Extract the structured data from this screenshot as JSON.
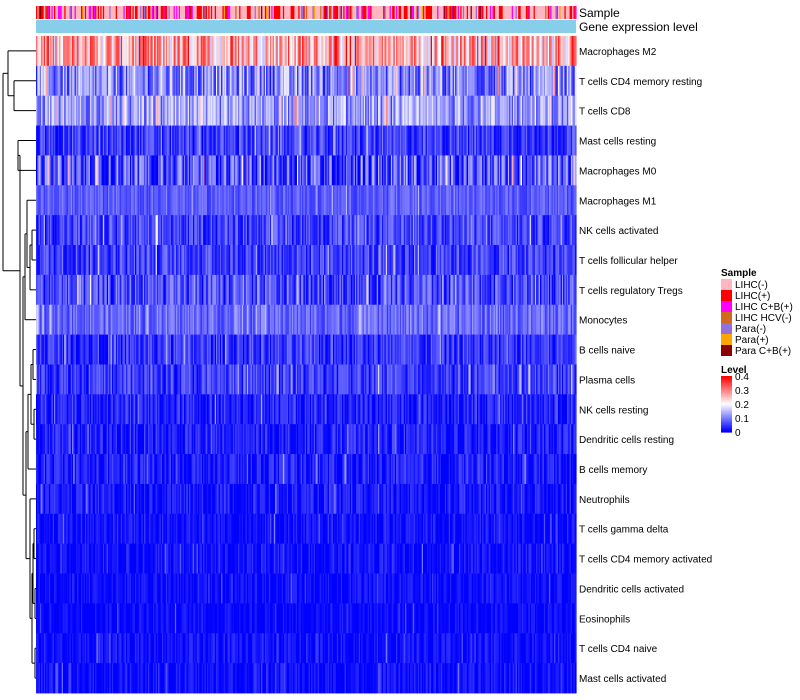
{
  "chart_data": {
    "type": "heatmap",
    "title": "",
    "annotation_tracks": [
      "Sample",
      "Gene expression level"
    ],
    "rows": [
      {
        "label": "Macrophages M2",
        "mean": 0.26,
        "spread": 0.11
      },
      {
        "label": "T cells CD4 memory resting",
        "mean": 0.1,
        "spread": 0.085
      },
      {
        "label": "T cells CD8",
        "mean": 0.115,
        "spread": 0.07
      },
      {
        "label": "Mast cells resting",
        "mean": 0.045,
        "spread": 0.05
      },
      {
        "label": "Macrophages M0",
        "mean": 0.06,
        "spread": 0.09
      },
      {
        "label": "Macrophages M1",
        "mean": 0.07,
        "spread": 0.03
      },
      {
        "label": "NK cells activated",
        "mean": 0.05,
        "spread": 0.05
      },
      {
        "label": "T cells follicular helper",
        "mean": 0.05,
        "spread": 0.05
      },
      {
        "label": "T cells regulatory  Tregs",
        "mean": 0.055,
        "spread": 0.06
      },
      {
        "label": "Monocytes",
        "mean": 0.08,
        "spread": 0.04
      },
      {
        "label": "B cells naive",
        "mean": 0.04,
        "spread": 0.05
      },
      {
        "label": "Plasma cells",
        "mean": 0.045,
        "spread": 0.05
      },
      {
        "label": "NK cells resting",
        "mean": 0.025,
        "spread": 0.045
      },
      {
        "label": "Dendritic cells resting",
        "mean": 0.02,
        "spread": 0.04
      },
      {
        "label": "B cells memory",
        "mean": 0.02,
        "spread": 0.04
      },
      {
        "label": "Neutrophils",
        "mean": 0.015,
        "spread": 0.035
      },
      {
        "label": "T cells gamma delta",
        "mean": 0.012,
        "spread": 0.03
      },
      {
        "label": "T cells CD4 memory activated",
        "mean": 0.01,
        "spread": 0.03
      },
      {
        "label": "Dendritic cells activated",
        "mean": 0.008,
        "spread": 0.025
      },
      {
        "label": "Eosinophils",
        "mean": 0.006,
        "spread": 0.025
      },
      {
        "label": "T cells CD4 naive",
        "mean": 0.008,
        "spread": 0.03
      },
      {
        "label": "Mast cells activated",
        "mean": 0.008,
        "spread": 0.03
      }
    ],
    "legend_sample": {
      "title": "Sample",
      "entries": [
        {
          "label": "LIHC(-)",
          "color": "#FFB6C1"
        },
        {
          "label": "LIHC(+)",
          "color": "#FF0000"
        },
        {
          "label": "LIHC C+B(+)",
          "color": "#FF00FF"
        },
        {
          "label": "LIHC HCV(-)",
          "color": "#D2691E"
        },
        {
          "label": "Para(-)",
          "color": "#9370DB"
        },
        {
          "label": "Para(+)",
          "color": "#FFA500"
        },
        {
          "label": "Para C+B(+)",
          "color": "#8B0000"
        }
      ]
    },
    "legend_level": {
      "title": "Level",
      "ticks": [
        {
          "label": "0.4",
          "value": 0.4
        },
        {
          "label": "0.3",
          "value": 0.3
        },
        {
          "label": "0.2",
          "value": 0.2
        },
        {
          "label": "0.1",
          "value": 0.1
        },
        {
          "label": "0",
          "value": 0
        }
      ],
      "range": [
        0,
        0.4
      ],
      "colors": {
        "low": "#0000FF",
        "mid": "#FFFFFF",
        "high": "#FF0000"
      }
    },
    "gene_expression_color": "#87CEEB",
    "n_samples": 420
  }
}
